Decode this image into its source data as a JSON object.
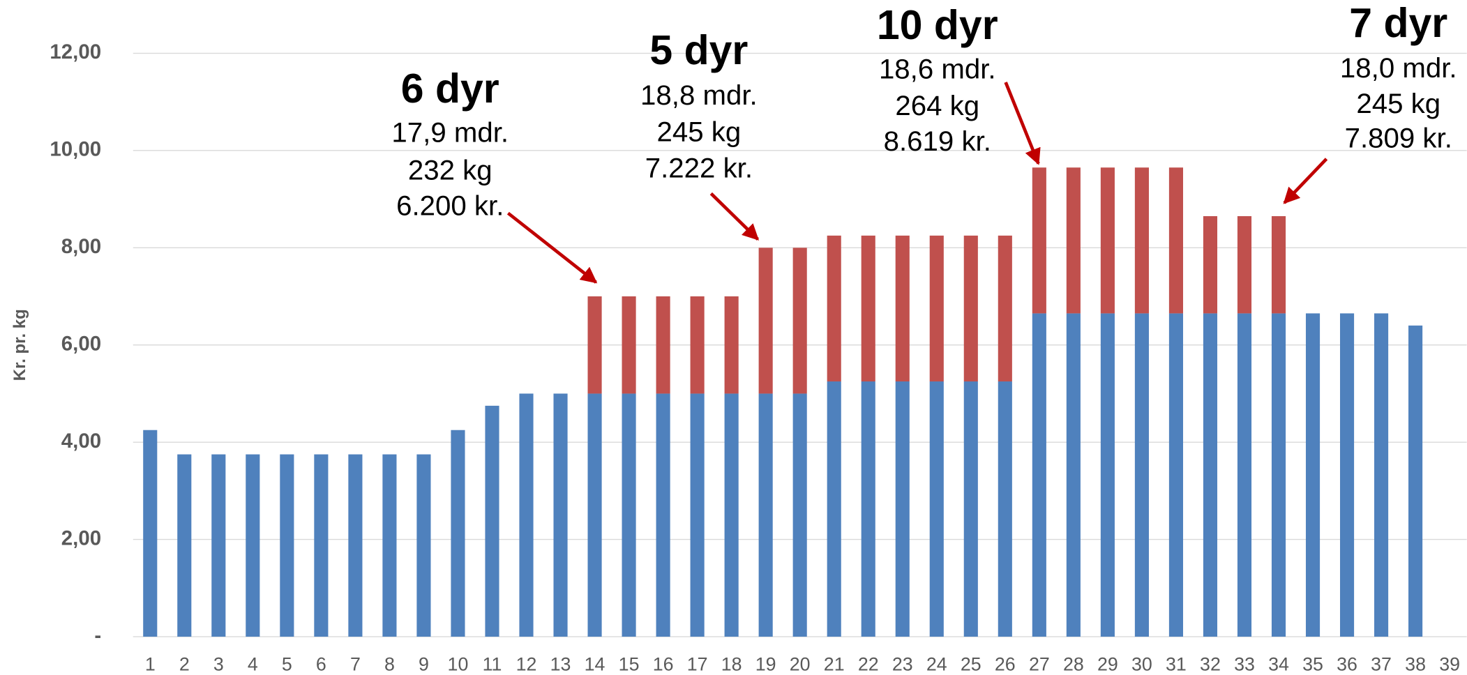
{
  "chart_data": {
    "type": "stacked_bar",
    "y_label": "Kr. pr. kg",
    "categories": [
      "1",
      "2",
      "3",
      "4",
      "5",
      "6",
      "7",
      "8",
      "9",
      "10",
      "11",
      "12",
      "13",
      "14",
      "15",
      "16",
      "17",
      "18",
      "19",
      "20",
      "21",
      "22",
      "23",
      "24",
      "25",
      "26",
      "27",
      "28",
      "29",
      "30",
      "31",
      "32",
      "33",
      "34",
      "35",
      "36",
      "37",
      "38",
      "39"
    ],
    "series": [
      {
        "color": "#4f81bd",
        "values": [
          4.25,
          3.75,
          3.75,
          3.75,
          3.75,
          3.75,
          3.75,
          3.75,
          3.75,
          4.25,
          4.75,
          5,
          5,
          5,
          5,
          5,
          5,
          5,
          5,
          5,
          5.25,
          5.25,
          5.25,
          5.25,
          5.25,
          5.25,
          6.65,
          6.65,
          6.65,
          6.65,
          6.65,
          6.65,
          6.65,
          6.65,
          6.65,
          6.65,
          6.65,
          6.4,
          null
        ]
      },
      {
        "color": "#c0504d",
        "values": [
          null,
          null,
          null,
          null,
          null,
          null,
          null,
          null,
          null,
          null,
          null,
          null,
          null,
          2,
          2,
          2,
          2,
          2,
          3,
          3,
          3,
          3,
          3,
          3,
          3,
          3,
          3,
          3,
          3,
          3,
          3,
          2,
          2,
          2,
          null,
          null,
          null,
          null,
          null
        ]
      }
    ],
    "ylim": [
      0,
      12
    ],
    "yticks": [
      {
        "value": 0,
        "label": "-"
      },
      {
        "value": 2,
        "label": "2,00"
      },
      {
        "value": 4,
        "label": "4,00"
      },
      {
        "value": 6,
        "label": "6,00"
      },
      {
        "value": 8,
        "label": "8,00"
      },
      {
        "value": 10,
        "label": "10,00"
      },
      {
        "value": 12,
        "label": "12,00"
      }
    ],
    "grid": true,
    "annotations": [
      {
        "title": "6 dyr",
        "lines": [
          "17,9 mdr.",
          "232 kg",
          "6.200 kr."
        ]
      },
      {
        "title": "5 dyr",
        "lines": [
          "18,8 mdr.",
          "245 kg",
          "7.222 kr."
        ]
      },
      {
        "title": "10 dyr",
        "lines": [
          "18,6 mdr.",
          "264 kg",
          "8.619 kr."
        ]
      },
      {
        "title": "7 dyr",
        "lines": [
          "18,0 mdr.",
          "245 kg",
          "7.809 kr."
        ]
      }
    ]
  }
}
